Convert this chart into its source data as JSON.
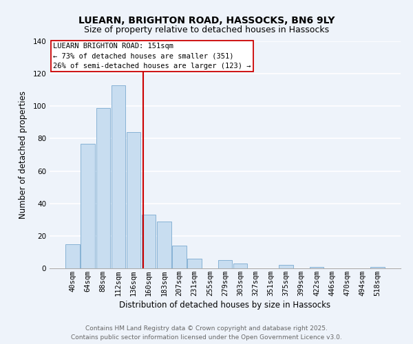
{
  "title": "LUEARN, BRIGHTON ROAD, HASSOCKS, BN6 9LY",
  "subtitle": "Size of property relative to detached houses in Hassocks",
  "xlabel": "Distribution of detached houses by size in Hassocks",
  "ylabel": "Number of detached properties",
  "bar_color": "#c8ddf0",
  "bar_edge_color": "#7aaad0",
  "bg_color": "#eef3fa",
  "plot_bg_color": "#eef3fa",
  "grid_color": "#ffffff",
  "categories": [
    "40sqm",
    "64sqm",
    "88sqm",
    "112sqm",
    "136sqm",
    "160sqm",
    "183sqm",
    "207sqm",
    "231sqm",
    "255sqm",
    "279sqm",
    "303sqm",
    "327sqm",
    "351sqm",
    "375sqm",
    "399sqm",
    "422sqm",
    "446sqm",
    "470sqm",
    "494sqm",
    "518sqm"
  ],
  "values": [
    15,
    77,
    99,
    113,
    84,
    33,
    29,
    14,
    6,
    0,
    5,
    3,
    0,
    0,
    2,
    0,
    1,
    0,
    0,
    0,
    1
  ],
  "ylim": [
    0,
    140
  ],
  "yticks": [
    0,
    20,
    40,
    60,
    80,
    100,
    120,
    140
  ],
  "vline_color": "#cc0000",
  "annotation_title": "LUEARN BRIGHTON ROAD: 151sqm",
  "annotation_line1": "← 73% of detached houses are smaller (351)",
  "annotation_line2": "26% of semi-detached houses are larger (123) →",
  "annotation_box_color": "#ffffff",
  "annotation_box_edge": "#cc0000",
  "footer_line1": "Contains HM Land Registry data © Crown copyright and database right 2025.",
  "footer_line2": "Contains public sector information licensed under the Open Government Licence v3.0.",
  "title_fontsize": 10,
  "subtitle_fontsize": 9,
  "xlabel_fontsize": 8.5,
  "ylabel_fontsize": 8.5,
  "tick_fontsize": 7.5,
  "annotation_fontsize": 7.5,
  "footer_fontsize": 6.5
}
